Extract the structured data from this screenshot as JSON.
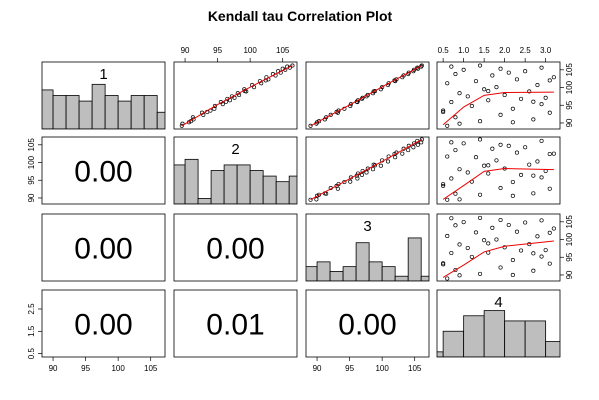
{
  "title": "Kendall tau Correlation Plot",
  "variables": [
    {
      "name": "1",
      "lim": [
        88.3,
        107.2
      ],
      "values": [
        89.2,
        89.8,
        90.5,
        91.0,
        91.6,
        92.3,
        92.9,
        93.5,
        94.0,
        94.8,
        95.3,
        95.9,
        96.4,
        96.8,
        97.1,
        97.5,
        97.9,
        98.4,
        98.9,
        99.5,
        100.1,
        100.7,
        101.2,
        101.8,
        102.3,
        102.9,
        103.4,
        103.8,
        104.2,
        104.6,
        105.0,
        105.3,
        105.6,
        105.9,
        106.2,
        90.2,
        93.1,
        96.0,
        99.0,
        102.0
      ]
    },
    {
      "name": "2",
      "lim": [
        88.3,
        107.2
      ],
      "values": [
        89.5,
        89.6,
        90.9,
        91.3,
        91.2,
        92.8,
        92.6,
        93.9,
        94.5,
        94.6,
        95.8,
        95.5,
        96.9,
        96.5,
        97.6,
        97.2,
        98.3,
        98.1,
        99.4,
        99.1,
        100.6,
        100.3,
        101.7,
        101.5,
        102.8,
        102.5,
        103.9,
        103.5,
        104.7,
        104.3,
        105.4,
        105.0,
        106.1,
        105.7,
        106.5,
        90.6,
        93.4,
        96.3,
        99.2,
        102.4
      ]
    },
    {
      "name": "3",
      "lim": [
        88.3,
        107.2
      ],
      "values": [
        89.0,
        89.9,
        90.3,
        91.2,
        91.4,
        92.1,
        93.2,
        93.3,
        94.2,
        95.1,
        95.2,
        96.2,
        96.3,
        96.9,
        97.0,
        97.6,
        97.8,
        98.6,
        98.7,
        99.8,
        100.0,
        100.9,
        101.0,
        102.0,
        102.2,
        103.1,
        103.3,
        104.0,
        104.1,
        104.8,
        104.9,
        105.5,
        105.4,
        106.0,
        106.1,
        90.0,
        93.0,
        96.1,
        98.9,
        101.9
      ]
    },
    {
      "name": "4",
      "lim": [
        0.35,
        3.35
      ],
      "values": [
        0.6,
        0.9,
        1.4,
        2.7,
        0.8,
        1.9,
        3.1,
        0.5,
        2.2,
        1.2,
        2.9,
        0.7,
        1.6,
        2.4,
        3.0,
        1.1,
        2.0,
        0.9,
        2.6,
        1.5,
        1.8,
        2.8,
        0.6,
        1.3,
        2.3,
        3.2,
        1.7,
        0.8,
        2.1,
        2.5,
        1.0,
        1.9,
        2.9,
        0.7,
        1.4,
        2.2,
        0.5,
        2.7,
        1.6,
        3.1
      ]
    }
  ],
  "histograms": [
    {
      "bins": [
        88,
        90,
        92,
        94,
        96,
        98,
        100,
        102,
        104,
        106,
        108
      ],
      "counts": [
        7,
        6,
        6,
        5,
        8,
        6,
        5,
        6,
        6,
        3
      ],
      "ylim": [
        0,
        12
      ]
    },
    {
      "bins": [
        88,
        90,
        92,
        94,
        96,
        98,
        100,
        102,
        104,
        106,
        108
      ],
      "counts": [
        7,
        8,
        1,
        6,
        7,
        7,
        6,
        5,
        4,
        5
      ],
      "ylim": [
        0,
        12
      ]
    },
    {
      "bins": [
        88,
        90,
        92,
        94,
        96,
        98,
        100,
        102,
        104,
        106,
        108
      ],
      "counts": [
        3,
        4,
        2,
        3,
        8,
        4,
        3,
        1,
        9,
        1
      ],
      "ylim": [
        0,
        14
      ]
    },
    {
      "bins": [
        0,
        0.5,
        1,
        1.5,
        2,
        2.5,
        3,
        3.5
      ],
      "counts": [
        1,
        5,
        8,
        9,
        7,
        7,
        3
      ],
      "ylim": [
        0,
        13
      ]
    }
  ],
  "smooths": {
    "1_2": {
      "x": [
        89.5,
        95,
        100,
        106.5
      ],
      "y": [
        89.2,
        95.2,
        100.1,
        106.2
      ]
    },
    "1_3": {
      "x": [
        89,
        95,
        100,
        106.1
      ],
      "y": [
        89.2,
        95.1,
        100.2,
        106.2
      ]
    },
    "1_4": {
      "x": [
        0.5,
        1.0,
        1.5,
        2.0,
        3.2
      ],
      "y": [
        89.5,
        94.5,
        97.8,
        98.6,
        98.7
      ]
    },
    "2_3": {
      "x": [
        89,
        95,
        100,
        106.1
      ],
      "y": [
        89.5,
        95.4,
        100.3,
        106.5
      ]
    },
    "2_4": {
      "x": [
        0.5,
        1.0,
        1.5,
        2.0,
        3.2
      ],
      "y": [
        89.6,
        93.5,
        97.5,
        98.3,
        98.0
      ]
    },
    "3_4": {
      "x": [
        0.5,
        1.0,
        1.5,
        2.0,
        3.2
      ],
      "y": [
        89.3,
        92.8,
        96.5,
        98.1,
        99.6
      ]
    }
  },
  "correlations": {
    "2_1": {
      "value": 0,
      "label": "0.00"
    },
    "3_1": {
      "value": 0,
      "label": "0.00"
    },
    "3_2": {
      "value": 0,
      "label": "0.00"
    },
    "4_1": {
      "value": 0,
      "label": "0.00"
    },
    "4_2": {
      "value": 0.01,
      "label": "0.01"
    },
    "4_3": {
      "value": 0,
      "label": "0.00"
    }
  },
  "axes": {
    "top_2": [
      90,
      95,
      100,
      105
    ],
    "top_4": [
      0.5,
      {
        "value": 1,
        "label": "1.0"
      },
      1.5,
      {
        "value": 2,
        "label": "2.0"
      },
      2.5,
      {
        "value": 3,
        "label": "3.0"
      }
    ],
    "bottom_1": [
      90,
      95,
      100,
      105
    ],
    "bottom_3": [
      90,
      95,
      100,
      105
    ],
    "left_2": [
      90,
      95,
      100,
      105
    ],
    "left_4": [
      0.5,
      1.5,
      2.5
    ],
    "right_1": [
      90,
      95,
      100,
      105
    ],
    "right_3": [
      90,
      95,
      100,
      105
    ]
  }
}
